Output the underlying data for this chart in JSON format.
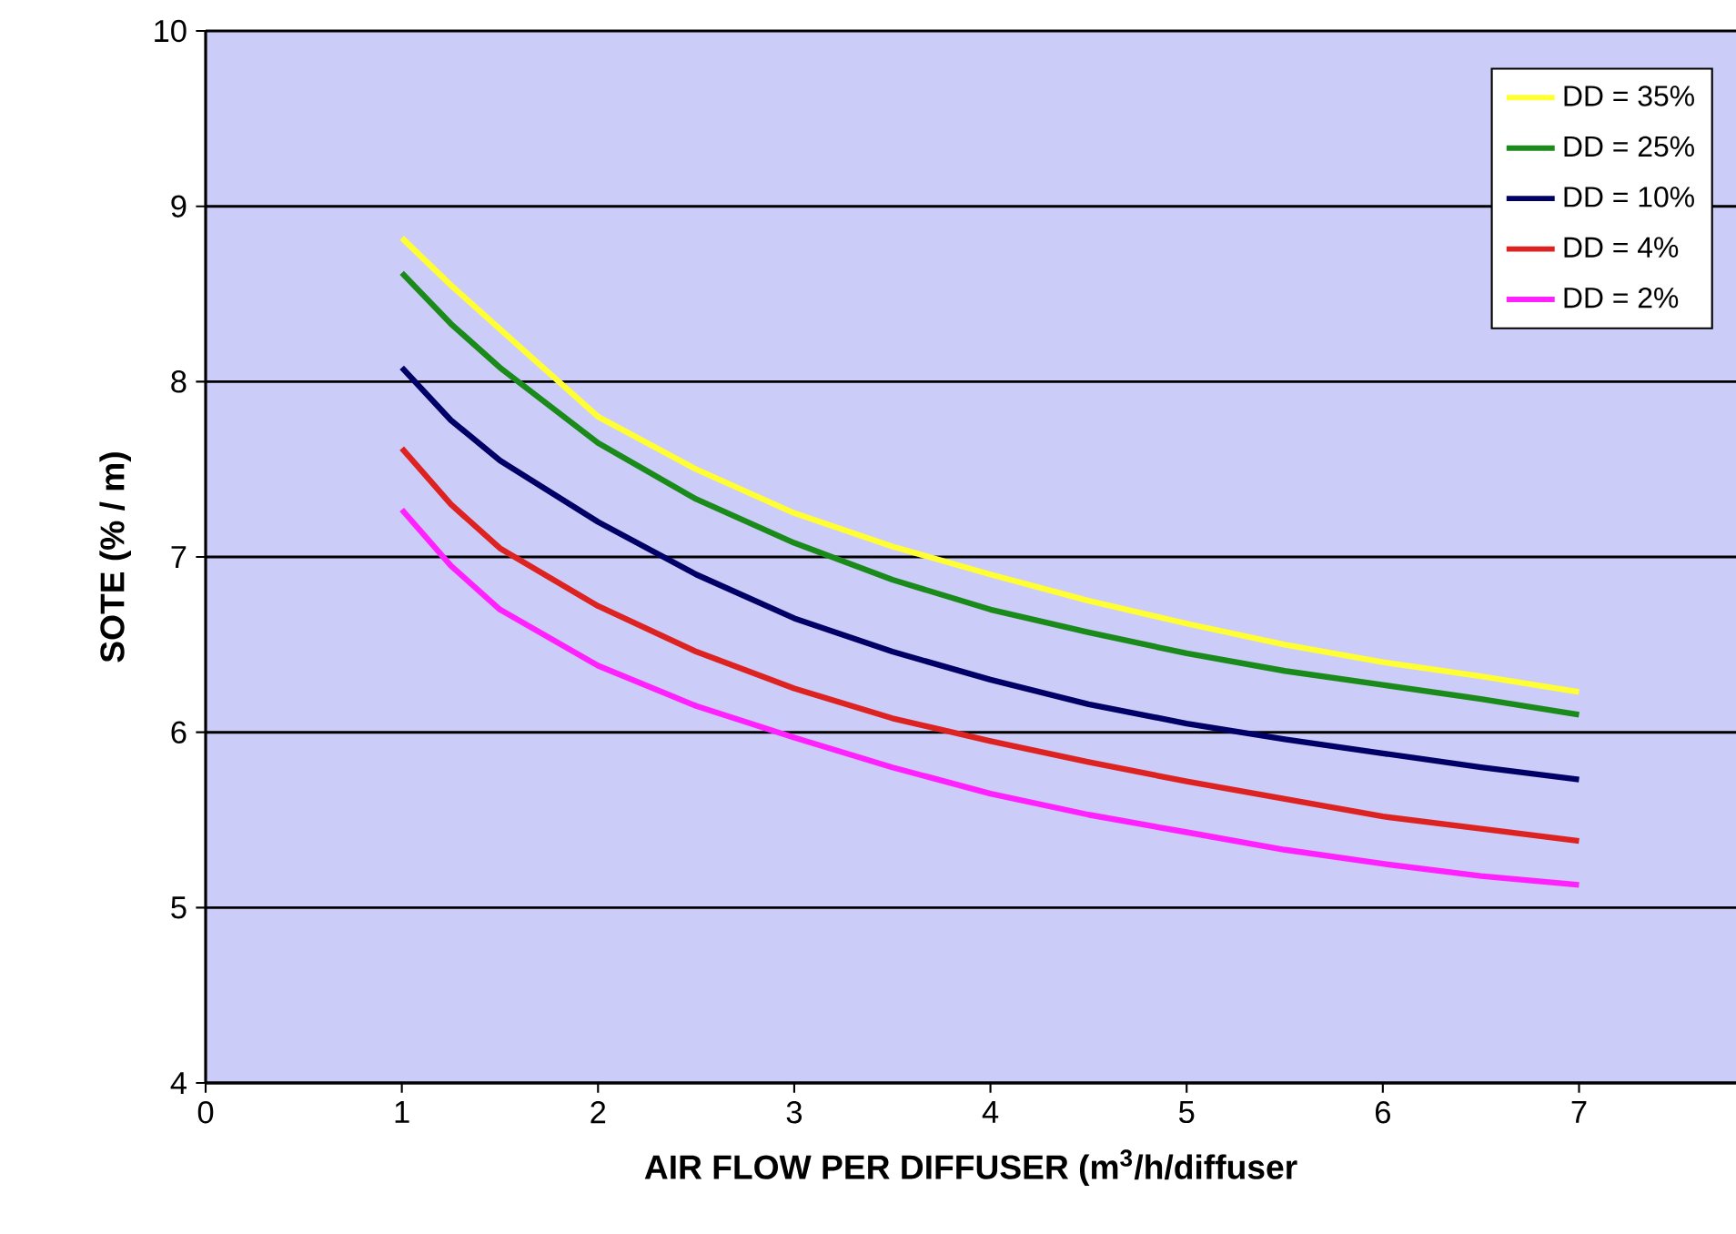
{
  "chart_data": {
    "type": "line",
    "xlabel": "AIR FLOW PER DIFFUSER (m$^{3}$/h/diffuser",
    "ylabel": "SOTE (% / m)",
    "xlim": [
      0,
      7.8
    ],
    "xticks": [
      0,
      1,
      2,
      3,
      4,
      5,
      6,
      7
    ],
    "ylim": [
      4,
      10
    ],
    "yticks": [
      4,
      5,
      6,
      7,
      8,
      9,
      10
    ],
    "grid": "y",
    "legend": "top right",
    "marker": "none",
    "line_style": "solid",
    "series": [
      {
        "name": "DD = 35%",
        "color": "#ffff33",
        "x": [
          1,
          1.25,
          1.5,
          2,
          2.5,
          3,
          3.5,
          4,
          4.5,
          5,
          5.5,
          6,
          6.5,
          7
        ],
        "values": [
          8.82,
          8.55,
          8.3,
          7.8,
          7.5,
          7.25,
          7.06,
          6.9,
          6.75,
          6.62,
          6.5,
          6.4,
          6.32,
          6.23
        ]
      },
      {
        "name": "DD = 25%",
        "color": "#1a8a1a",
        "x": [
          1,
          1.25,
          1.5,
          2,
          2.5,
          3,
          3.5,
          4,
          4.5,
          5,
          5.5,
          6,
          6.5,
          7
        ],
        "values": [
          8.62,
          8.33,
          8.08,
          7.65,
          7.33,
          7.08,
          6.87,
          6.7,
          6.57,
          6.45,
          6.35,
          6.27,
          6.19,
          6.1
        ]
      },
      {
        "name": "DD = 10%",
        "color": "#000066",
        "x": [
          1,
          1.25,
          1.5,
          2,
          2.5,
          3,
          3.5,
          4,
          4.5,
          5,
          5.5,
          6,
          6.5,
          7
        ],
        "values": [
          8.08,
          7.78,
          7.55,
          7.2,
          6.9,
          6.65,
          6.46,
          6.3,
          6.16,
          6.05,
          5.96,
          5.88,
          5.8,
          5.73
        ]
      },
      {
        "name": "DD = 4%",
        "color": "#dd2222",
        "x": [
          1,
          1.25,
          1.5,
          2,
          2.5,
          3,
          3.5,
          4,
          4.5,
          5,
          5.5,
          6,
          6.5,
          7
        ],
        "values": [
          7.62,
          7.3,
          7.05,
          6.72,
          6.46,
          6.25,
          6.08,
          5.95,
          5.83,
          5.72,
          5.62,
          5.52,
          5.45,
          5.38
        ]
      },
      {
        "name": "DD = 2%",
        "color": "#ff22ff",
        "x": [
          1,
          1.25,
          1.5,
          2,
          2.5,
          3,
          3.5,
          4,
          4.5,
          5,
          5.5,
          6,
          6.5,
          7
        ],
        "values": [
          7.27,
          6.95,
          6.7,
          6.38,
          6.15,
          5.97,
          5.8,
          5.65,
          5.53,
          5.43,
          5.33,
          5.25,
          5.18,
          5.13
        ]
      }
    ]
  }
}
